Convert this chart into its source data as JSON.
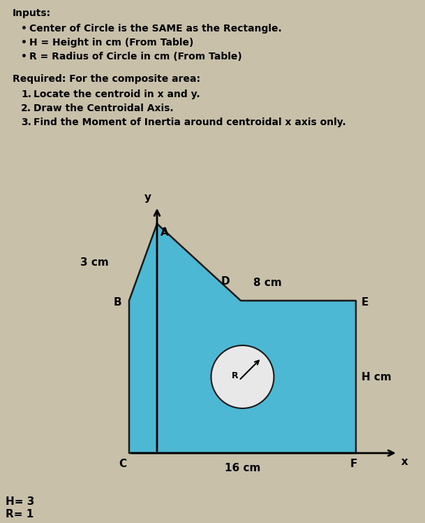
{
  "background_color": "#c8c0a8",
  "fig_width": 6.09,
  "fig_height": 7.48,
  "dpi": 100,
  "text_inputs_label": "Inputs:",
  "bullet1": "Center of Circle is the SAME as the Rectangle.",
  "bullet2": "H = Height in cm (From Table)",
  "bullet3": "R = Radius of Circle in cm (From Table)",
  "required_label": "Required: For the composite area:",
  "req1": "Locate the centroid in x and y.",
  "req2": "Draw the Centroidal Axis.",
  "req3": "Find the Moment of Inertia around centroidal x axis only.",
  "H_label": "H= 3",
  "R_label": "R= 1",
  "shape_fill_color": "#4db8d4",
  "shape_edge_color": "#1a1a1a",
  "circle_fill_color": "#e8e8e8",
  "dim_16cm": "16 cm",
  "dim_8cm": "8 cm",
  "dim_3cm": "3 cm",
  "dim_Hcm": "H cm",
  "label_A": "A",
  "label_B": "B",
  "label_C": "C",
  "label_D": "D",
  "label_E": "E",
  "label_F": "F",
  "label_R": "R",
  "label_x": "x",
  "label_y": "y"
}
